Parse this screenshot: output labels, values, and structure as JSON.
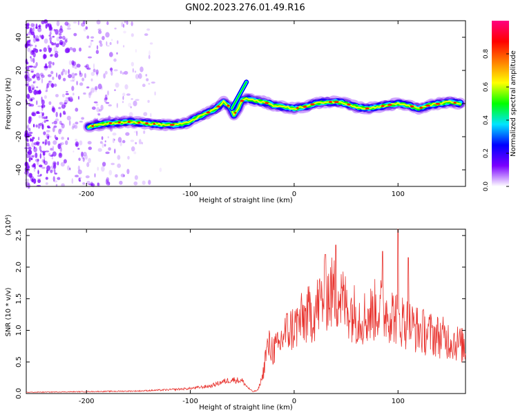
{
  "title": "GN02.2023.276.01.49.R16",
  "colors": {
    "signal": "#e8332e",
    "noise": "#7a00ff",
    "axis": "#000000"
  },
  "chart_data": [
    {
      "type": "heatmap",
      "title": "",
      "xlabel": "Height of straight line (km)",
      "ylabel": "Frequency (Hz)",
      "xlim": [
        -258,
        165
      ],
      "ylim": [
        -50,
        50
      ],
      "xticks": [
        -200,
        -100,
        0,
        100
      ],
      "yticks": [
        -40,
        -20,
        0,
        20,
        40
      ],
      "colorbar": {
        "label": "Normalized spectral amplitude",
        "range": [
          0,
          1
        ],
        "ticks": [
          0.0,
          0.2,
          0.4,
          0.6,
          0.8
        ],
        "colormap": [
          "#ffffff",
          "#7a00ff",
          "#0000ff",
          "#00e5ff",
          "#00ff00",
          "#ffff00",
          "#ff8000",
          "#ff0000",
          "#ff0080"
        ]
      },
      "ridge": {
        "x": [
          -198,
          -180,
          -160,
          -140,
          -120,
          -105,
          -95,
          -85,
          -75,
          -68,
          -62,
          -58,
          -54,
          -50,
          -45,
          -40,
          -30,
          -20,
          -10,
          0,
          10,
          20,
          30,
          40,
          50,
          60,
          70,
          80,
          90,
          100,
          110,
          120,
          130,
          140,
          150,
          160
        ],
        "y": [
          -14,
          -12,
          -11,
          -12,
          -13,
          -12,
          -9,
          -6,
          -3,
          1,
          -2,
          -7,
          -3,
          2,
          3,
          2,
          1,
          -1,
          -2,
          -3,
          -2,
          0,
          1,
          1,
          0,
          -2,
          -3,
          -2,
          -1,
          0,
          -1,
          -3,
          -1,
          0,
          1,
          0
        ]
      },
      "spur": {
        "x": [
          -60,
          -46
        ],
        "y": [
          -3,
          13
        ]
      }
    },
    {
      "type": "line",
      "title": "",
      "xlabel": "Height of straight line (km)",
      "ylabel": "SNR (10 * v/v)",
      "yscale_label": "(x10⁴)",
      "xlim": [
        -258,
        165
      ],
      "ylim": [
        0,
        2.6
      ],
      "xticks": [
        -200,
        -100,
        0,
        100
      ],
      "yticks": [
        0.0,
        0.5,
        1.0,
        1.5,
        2.0,
        2.5
      ],
      "series": [
        {
          "x": [
            -258,
            -200,
            -150,
            -120,
            -100,
            -80,
            -70,
            -60,
            -50,
            -45,
            -40,
            -35,
            -30,
            -28,
            -25,
            -20,
            -15,
            -10,
            0,
            10,
            20,
            25,
            30,
            40,
            50,
            60,
            70,
            80,
            90,
            100,
            110,
            120,
            130,
            140,
            150,
            160,
            165
          ],
          "values": [
            0.02,
            0.03,
            0.04,
            0.06,
            0.08,
            0.12,
            0.18,
            0.22,
            0.2,
            0.1,
            0.03,
            0.05,
            0.3,
            0.55,
            0.75,
            0.7,
            0.72,
            0.95,
            1.05,
            1.2,
            1.3,
            1.45,
            1.55,
            1.6,
            1.4,
            1.25,
            1.2,
            1.35,
            1.3,
            1.2,
            1.1,
            1.0,
            0.95,
            0.9,
            0.85,
            0.78,
            0.72
          ],
          "peaks": [
            {
              "x": 30,
              "y": 2.2
            },
            {
              "x": 40,
              "y": 2.35
            },
            {
              "x": 85,
              "y": 2.25
            },
            {
              "x": 100,
              "y": 2.6
            },
            {
              "x": 110,
              "y": 2.15
            }
          ]
        }
      ]
    }
  ]
}
